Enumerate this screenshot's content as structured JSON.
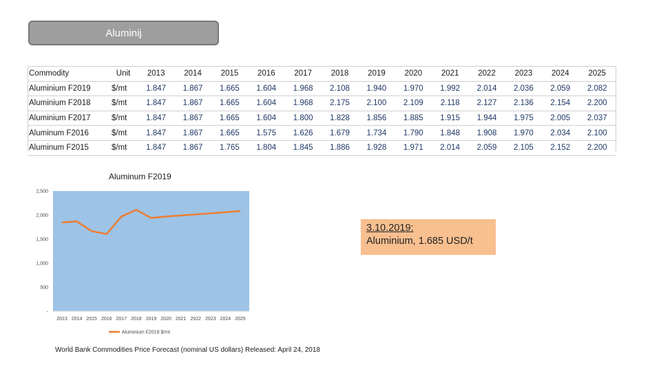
{
  "title": "Aluminij",
  "table": {
    "headers": [
      "Commodity",
      "Unit",
      "2013",
      "2014",
      "2015",
      "2016",
      "2017",
      "2018",
      "2019",
      "2020",
      "2021",
      "2022",
      "2023",
      "2024",
      "2025"
    ],
    "rows": [
      [
        "Aluminium F2019",
        "$/mt",
        "1.847",
        "1.867",
        "1.665",
        "1.604",
        "1.968",
        "2.108",
        "1.940",
        "1.970",
        "1.992",
        "2.014",
        "2.036",
        "2.059",
        "2.082"
      ],
      [
        "Aluminium F2018",
        "$/mt",
        "1.847",
        "1.867",
        "1.665",
        "1.604",
        "1.968",
        "2.175",
        "2.100",
        "2.109",
        "2.118",
        "2.127",
        "2.136",
        "2.154",
        "2.200"
      ],
      [
        "Aluminium F2017",
        "$/mt",
        "1.847",
        "1.867",
        "1.665",
        "1.604",
        "1.800",
        "1.828",
        "1.856",
        "1.885",
        "1.915",
        "1.944",
        "1.975",
        "2.005",
        "2.037"
      ],
      [
        "Aluminum F2016",
        "$/mt",
        "1.847",
        "1.867",
        "1.665",
        "1.575",
        "1.626",
        "1.679",
        "1.734",
        "1.790",
        "1.848",
        "1.908",
        "1.970",
        "2.034",
        "2.100"
      ],
      [
        "Aluminum F2015",
        "$/mt",
        "1.847",
        "1.867",
        "1.765",
        "1.804",
        "1.845",
        "1.886",
        "1.928",
        "1.971",
        "2.014",
        "2.059",
        "2.105",
        "2.152",
        "2.200"
      ]
    ]
  },
  "chart_data": {
    "type": "line",
    "title": "Aluminum F2019",
    "x": [
      "2013",
      "2014",
      "2015",
      "2016",
      "2017",
      "2018",
      "2019",
      "2020",
      "2021",
      "2022",
      "2023",
      "2024",
      "2025"
    ],
    "series": [
      {
        "name": "Aluminium F2019 $/mt",
        "values": [
          1847,
          1867,
          1665,
          1604,
          1968,
          2108,
          1940,
          1970,
          1992,
          2014,
          2036,
          2059,
          2082
        ]
      }
    ],
    "yticks": [
      "-",
      "500",
      "1,000",
      "1,500",
      "2,000",
      "2,500"
    ],
    "ylim": [
      0,
      2500
    ],
    "grid": false,
    "legend": "bottom",
    "colors": {
      "plot_background": "#9dc3e6",
      "line": "#ed7d31"
    }
  },
  "note": {
    "line1": "3.10.2019:",
    "line2": "Aluminium, 1.685 USD/t"
  },
  "source": "World Bank Commodities Price Forecast (nominal US dollars) Released: April 24, 2018"
}
